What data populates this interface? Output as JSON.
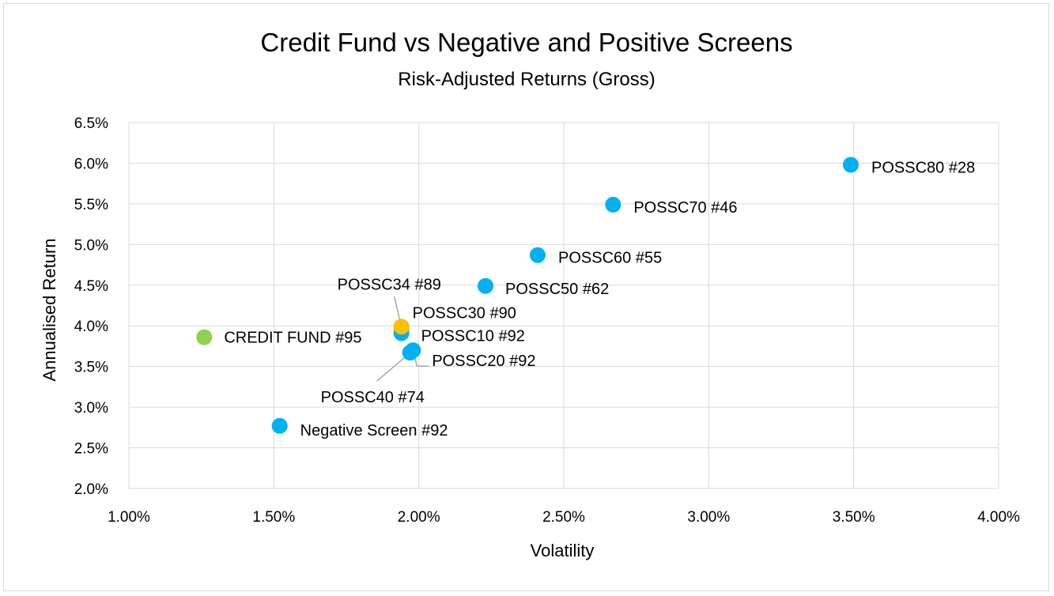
{
  "chart_data": {
    "type": "scatter",
    "title": "Credit Fund vs Negative and Positive Screens",
    "subtitle": "Risk-Adjusted Returns (Gross)",
    "xlabel": "Volatility",
    "ylabel": "Annualised Return",
    "xlim": [
      0.01,
      0.04
    ],
    "ylim": [
      0.02,
      0.065
    ],
    "x_ticks": [
      0.01,
      0.015,
      0.02,
      0.025,
      0.03,
      0.035,
      0.04
    ],
    "x_tick_labels": [
      "1.00%",
      "1.50%",
      "2.00%",
      "2.50%",
      "3.00%",
      "3.50%",
      "4.00%"
    ],
    "y_ticks": [
      0.02,
      0.025,
      0.03,
      0.035,
      0.04,
      0.045,
      0.05,
      0.055,
      0.06,
      0.065
    ],
    "y_tick_labels": [
      "2.0%",
      "2.5%",
      "3.0%",
      "3.5%",
      "4.0%",
      "4.5%",
      "5.0%",
      "5.5%",
      "6.0%",
      "6.5%"
    ],
    "grid": true,
    "legend": "none",
    "colors": {
      "screen": "#00b0f0",
      "fund": "#92d050",
      "highlight": "#ffc000"
    },
    "points": [
      {
        "label": "CREDIT FUND #95",
        "x": 0.0126,
        "y": 0.0386,
        "color": "#92d050"
      },
      {
        "label": "Negative Screen #92",
        "x": 0.0152,
        "y": 0.0277,
        "color": "#00b0f0"
      },
      {
        "label": "POSSC10 #92",
        "x": 0.0194,
        "y": 0.0391,
        "color": "#00b0f0"
      },
      {
        "label": "POSSC20 #92",
        "x": 0.0198,
        "y": 0.037,
        "color": "#00b0f0"
      },
      {
        "label": "POSSC30 #90",
        "x": 0.0194,
        "y": 0.0397,
        "color": "#00b0f0"
      },
      {
        "label": "POSSC34 #89",
        "x": 0.0194,
        "y": 0.0399,
        "color": "#ffc000"
      },
      {
        "label": "POSSC40 #74",
        "x": 0.0197,
        "y": 0.0367,
        "color": "#00b0f0"
      },
      {
        "label": "POSSC50 #62",
        "x": 0.0223,
        "y": 0.0449,
        "color": "#00b0f0"
      },
      {
        "label": "POSSC60 #55",
        "x": 0.0241,
        "y": 0.0487,
        "color": "#00b0f0"
      },
      {
        "label": "POSSC70 #46",
        "x": 0.0267,
        "y": 0.0549,
        "color": "#00b0f0"
      },
      {
        "label": "POSSC80 #28",
        "x": 0.0349,
        "y": 0.0598,
        "color": "#00b0f0"
      }
    ]
  }
}
